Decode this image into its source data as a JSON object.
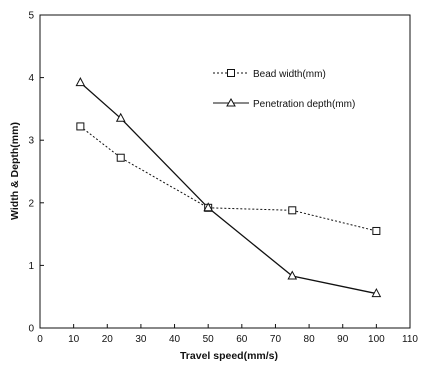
{
  "chart_data": {
    "type": "line",
    "xlabel": "Travel speed(mm/s)",
    "ylabel": "Width & Depth(mm)",
    "xlim": [
      0,
      110
    ],
    "ylim": [
      0,
      5
    ],
    "xticks": [
      "0",
      "10",
      "20",
      "30",
      "40",
      "50",
      "60",
      "70",
      "80",
      "90",
      "100",
      "110"
    ],
    "yticks": [
      "0",
      "1",
      "2",
      "3",
      "4",
      "5"
    ],
    "grid": false,
    "legend_position": "top-right",
    "series": [
      {
        "name": "Bead width(mm)",
        "marker": "square",
        "line_style": "dotted",
        "x": [
          12,
          24,
          50,
          75,
          100
        ],
        "y": [
          3.22,
          2.72,
          1.92,
          1.88,
          1.55
        ]
      },
      {
        "name": "Penetration depth(mm)",
        "marker": "triangle",
        "line_style": "solid",
        "x": [
          12,
          24,
          50,
          75,
          100
        ],
        "y": [
          3.92,
          3.35,
          1.92,
          0.83,
          0.55
        ]
      }
    ]
  }
}
